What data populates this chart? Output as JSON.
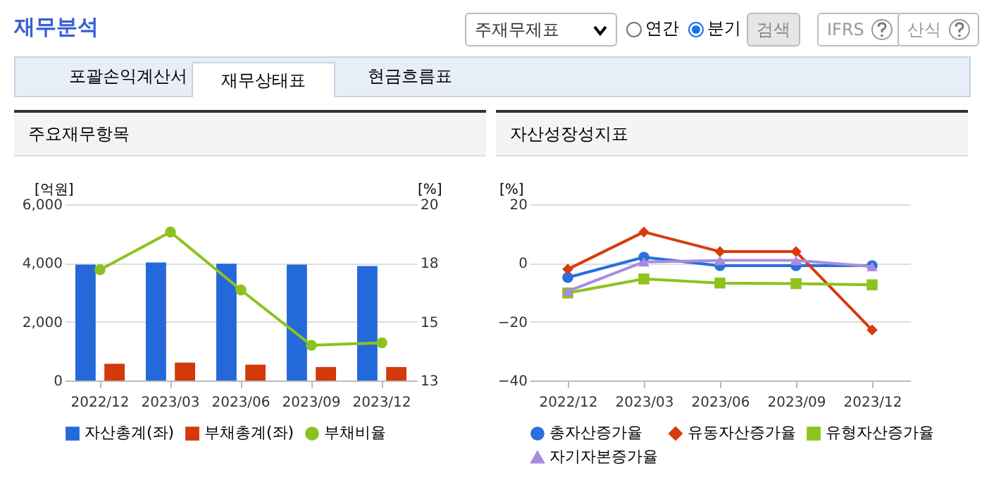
{
  "chart_data": [
    {
      "type": "other",
      "title": "재무분석",
      "annotations": [
        "주재무제표",
        "연간",
        "분기",
        "검색",
        "IFRS",
        "산식",
        "포괄손익계산서",
        "재무상태표",
        "현금흐름표"
      ]
    },
    {
      "type": "bar",
      "title": "주요재무항목",
      "categories": [
        "2022/12",
        "2023/03",
        "2023/06",
        "2023/09",
        "2023/12"
      ],
      "ylabel": "[억원]",
      "y2label": "[%]",
      "ylim": [
        0,
        6000
      ],
      "yticks": [
        0,
        {
          "value": 2000,
          "label": "2,000"
        },
        {
          "value": 4000,
          "label": "4,000"
        },
        {
          "value": 6000,
          "label": "6,000"
        }
      ],
      "y2lim": [
        13,
        20
      ],
      "y2ticks": [
        13,
        {
          "value": 15.33,
          "label": "15"
        },
        {
          "value": 17.67,
          "label": "18"
        },
        20
      ],
      "grid": "y",
      "legend": "bottom",
      "series": [
        {
          "name": "자산총계(좌)",
          "color": "#2469d9",
          "values": [
            3950,
            4020,
            3980,
            3950,
            3900
          ]
        },
        {
          "name": "부채총계(좌)",
          "color": "#d3390b",
          "values": [
            570,
            610,
            540,
            460,
            460
          ]
        },
        {
          "name": "부채비율",
          "type": "line",
          "axis": "y2",
          "color": "#8cc21f",
          "marker": "circle",
          "values": [
            17.4,
            18.9,
            16.6,
            14.4,
            14.5
          ]
        }
      ]
    },
    {
      "type": "line",
      "title": "자산성장성지표",
      "categories": [
        "2022/12",
        "2023/03",
        "2023/06",
        "2023/09",
        "2023/12"
      ],
      "ylabel": "[%]",
      "ylim": [
        -40,
        20
      ],
      "yticks": [
        -40,
        -20,
        0,
        20
      ],
      "grid": "y",
      "legend": "bottom",
      "series": [
        {
          "name": "총자산증가율",
          "color": "#2a6fdb",
          "marker": "circle",
          "values": [
            -4.9,
            2.0,
            -0.9,
            -0.9,
            -0.9
          ]
        },
        {
          "name": "유동자산증가율",
          "color": "#d63c0c",
          "marker": "diamond",
          "values": [
            -2.1,
            10.6,
            3.9,
            3.9,
            -22.8
          ]
        },
        {
          "name": "유형자산증가율",
          "color": "#8dc21f",
          "marker": "square",
          "values": [
            -10.2,
            -5.4,
            -6.8,
            -7.0,
            -7.4
          ]
        },
        {
          "name": "자기자본증가율",
          "color": "#a98be0",
          "marker": "triangle",
          "values": [
            -9.6,
            0.4,
            0.9,
            0.9,
            -1.2
          ]
        }
      ]
    }
  ]
}
